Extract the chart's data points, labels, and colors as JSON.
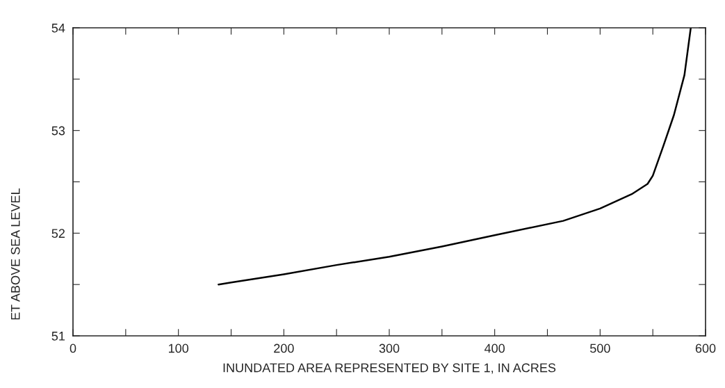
{
  "chart_data": {
    "type": "line",
    "xlabel": "INUNDATED AREA REPRESENTED BY SITE 1, IN ACRES",
    "ylabel": "ET ABOVE SEA LEVEL",
    "series": [
      {
        "color": "#000000",
        "x": [
          138,
          150,
          200,
          250,
          300,
          350,
          400,
          465,
          500,
          530,
          545,
          550,
          560,
          570,
          580,
          586
        ],
        "values": [
          51.5,
          51.52,
          51.6,
          51.69,
          51.77,
          51.87,
          51.98,
          52.12,
          52.24,
          52.38,
          52.48,
          52.56,
          52.85,
          53.15,
          53.54,
          54.0
        ]
      }
    ],
    "xlim": [
      0,
      600
    ],
    "ylim": [
      51,
      54
    ],
    "xticks": [
      0,
      {
        "value": 50,
        "label": null
      },
      100,
      {
        "value": 150,
        "label": null
      },
      200,
      {
        "value": 250,
        "label": null
      },
      300,
      {
        "value": 350,
        "label": null
      },
      400,
      {
        "value": 450,
        "label": null
      },
      500,
      {
        "value": 550,
        "label": null
      },
      600
    ],
    "yticks": [
      51,
      {
        "value": 51.5,
        "label": null
      },
      52,
      {
        "value": 52.5,
        "label": null
      },
      53,
      {
        "value": 53.5,
        "label": null
      },
      54
    ],
    "grid": false,
    "marker": "none",
    "line_style": "solid",
    "legend": false
  }
}
